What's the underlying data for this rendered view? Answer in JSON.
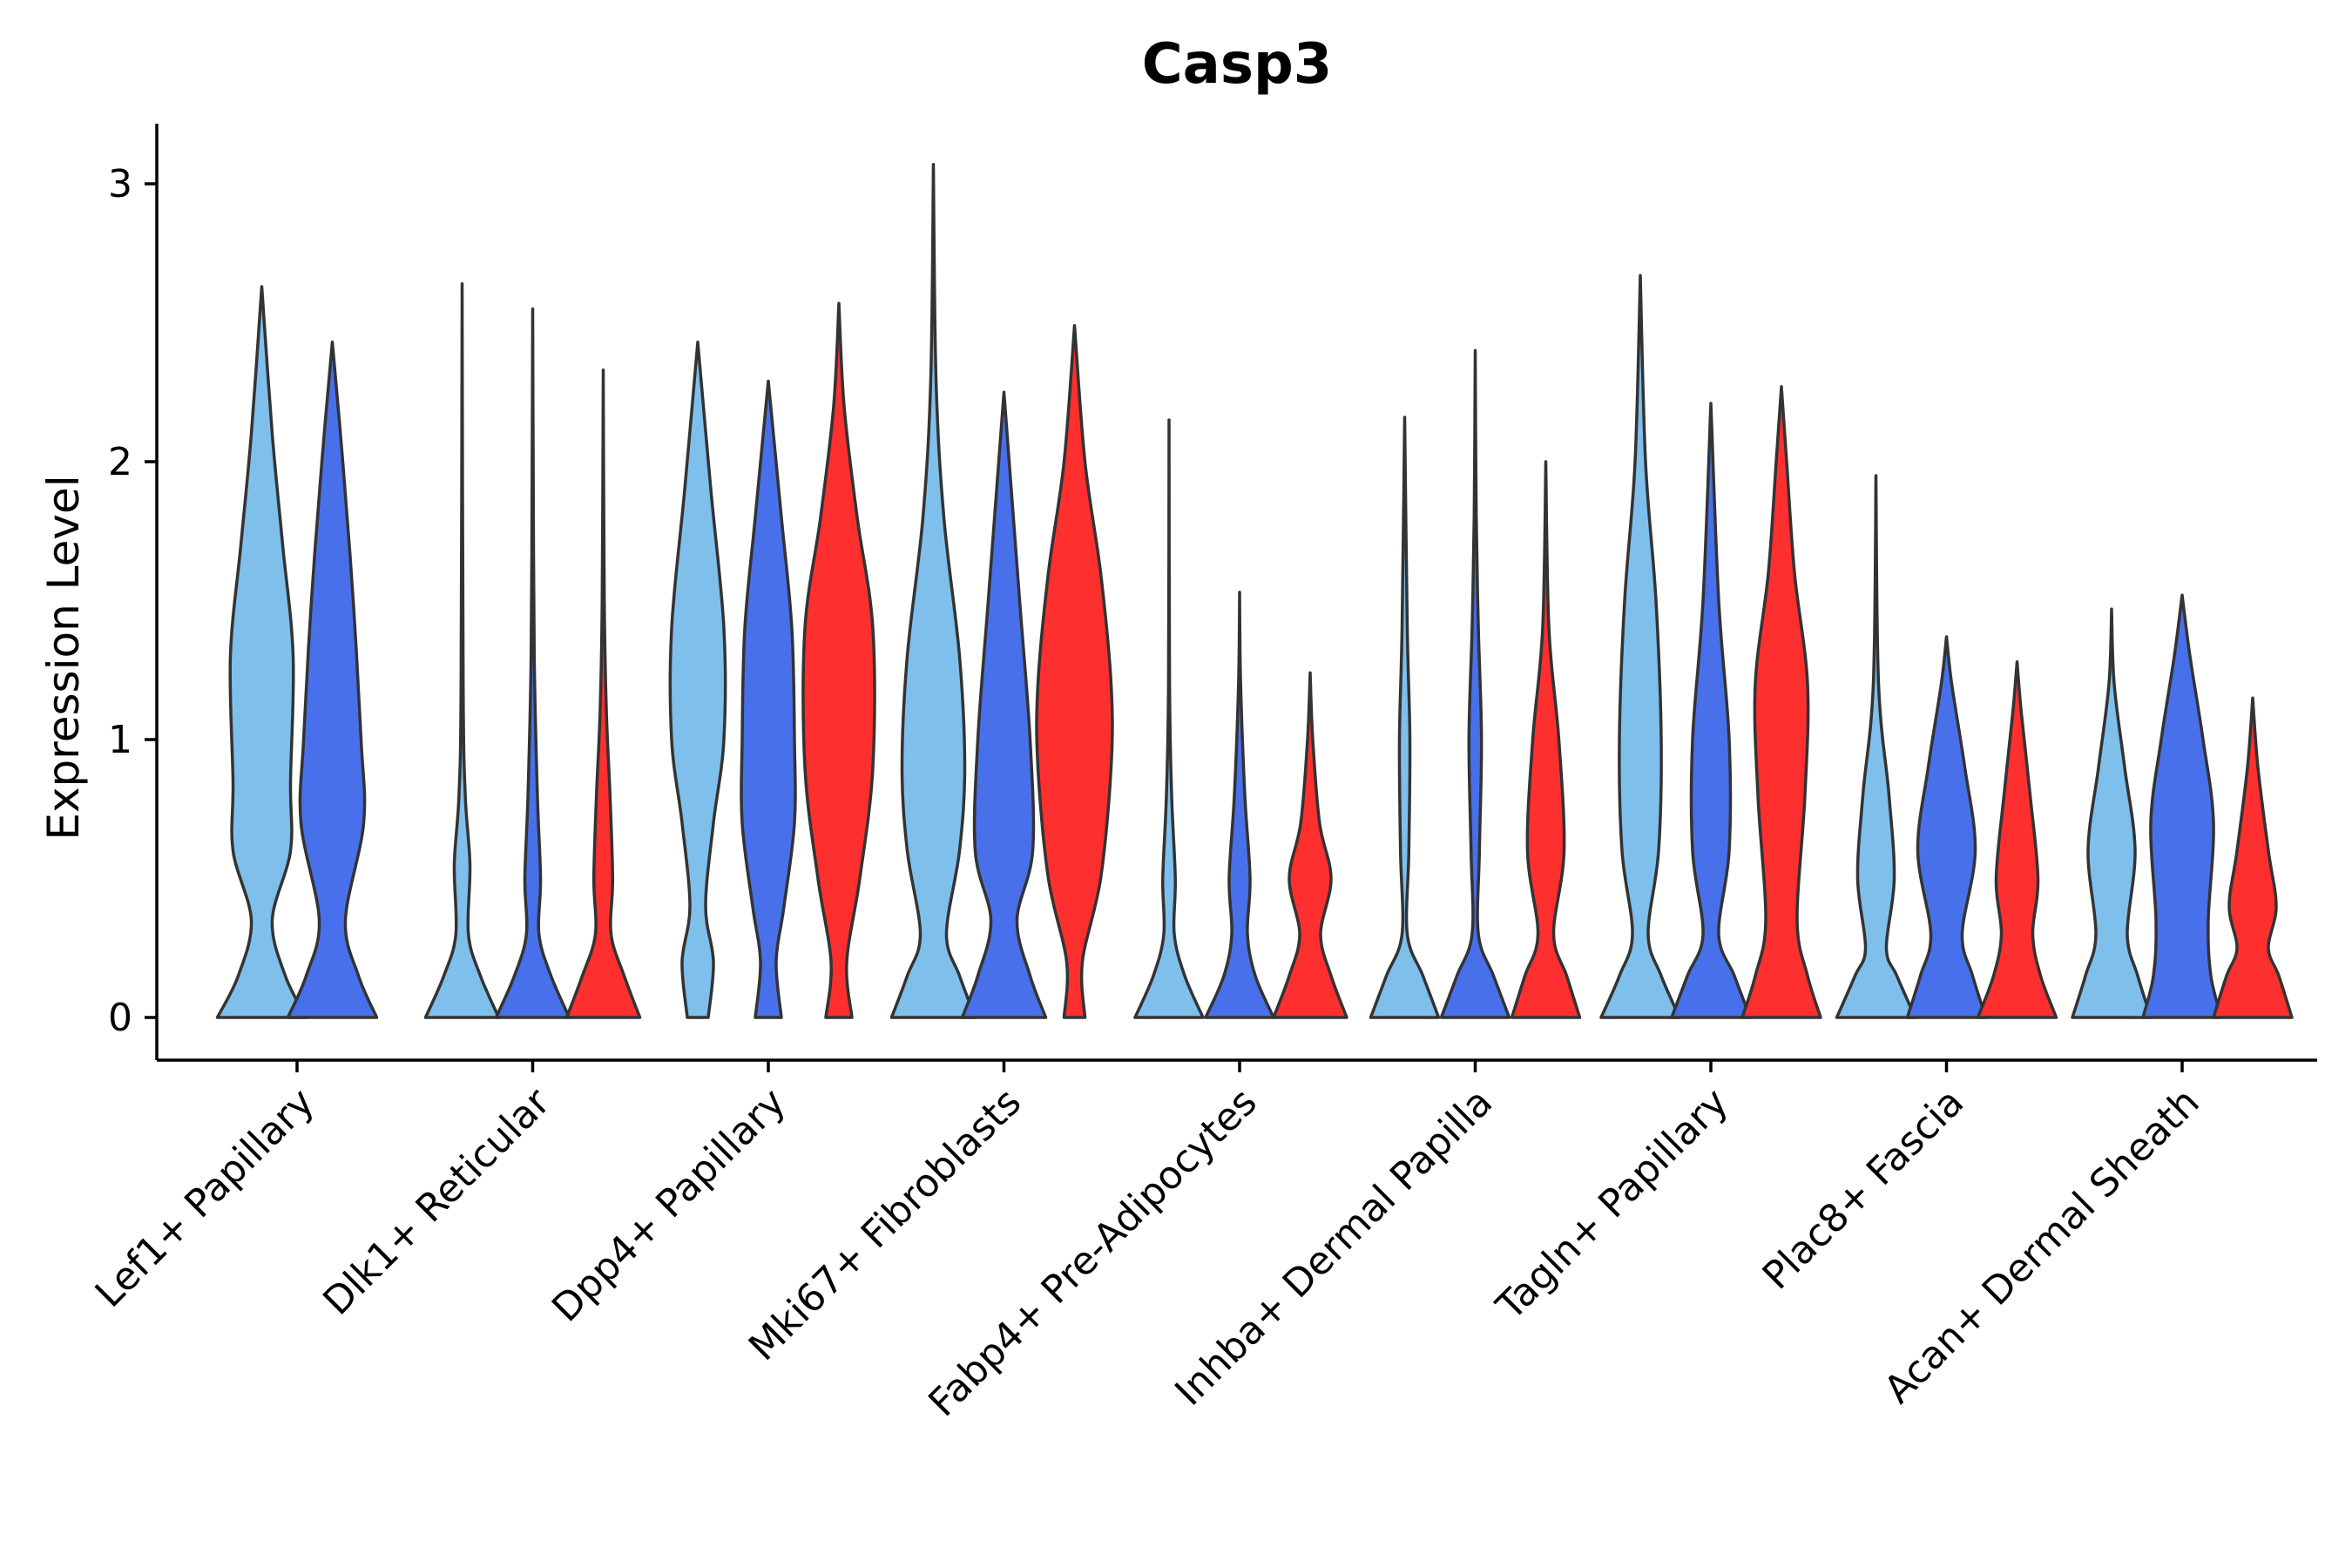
{
  "chart_data": {
    "type": "violin",
    "title": "Casp3",
    "xlabel": "",
    "ylabel": "Expression Level",
    "ylim": [
      -0.15,
      3.22
    ],
    "yticks": [
      0,
      1,
      2,
      3
    ],
    "grid": false,
    "legend": "none",
    "categories": [
      "Lef1+ Papillary",
      "Dlk1+ Reticular",
      "Dpp4+ Papillary",
      "Mki67+ Fibroblasts",
      "Fabp4+ Pre-Adipocytes",
      "Inhba+ Dermal Papilla",
      "Tagln+ Papillary",
      "Plac8+ Fascia",
      "Acan+ Dermal Sheath"
    ],
    "groups": [
      {
        "name": "group-1",
        "color": "#7fbfec"
      },
      {
        "name": "group-2",
        "color": "#4870eb"
      },
      {
        "name": "group-3",
        "color": "#fd2f2f"
      }
    ],
    "violins": [
      {
        "category": 0,
        "group": 0,
        "max": 2.63,
        "profile": [
          [
            0,
            0.85
          ],
          [
            0.15,
            0.45
          ],
          [
            0.35,
            0.2
          ],
          [
            0.6,
            0.55
          ],
          [
            0.85,
            0.55
          ],
          [
            1.3,
            0.6
          ],
          [
            1.7,
            0.4
          ],
          [
            2.1,
            0.2
          ],
          [
            2.63,
            0
          ]
        ]
      },
      {
        "category": 0,
        "group": 1,
        "max": 2.43,
        "profile": [
          [
            0,
            0.85
          ],
          [
            0.15,
            0.5
          ],
          [
            0.35,
            0.25
          ],
          [
            0.7,
            0.6
          ],
          [
            1.0,
            0.55
          ],
          [
            1.5,
            0.4
          ],
          [
            2.0,
            0.2
          ],
          [
            2.43,
            0
          ]
        ]
      },
      {
        "category": 1,
        "group": 0,
        "max": 2.64,
        "profile": [
          [
            0,
            0.7
          ],
          [
            0.15,
            0.35
          ],
          [
            0.3,
            0.12
          ],
          [
            0.55,
            0.15
          ],
          [
            0.8,
            0.06
          ],
          [
            1.2,
            0.02
          ],
          [
            2.64,
            0
          ]
        ]
      },
      {
        "category": 1,
        "group": 1,
        "max": 2.55,
        "profile": [
          [
            0,
            0.7
          ],
          [
            0.15,
            0.35
          ],
          [
            0.3,
            0.12
          ],
          [
            0.5,
            0.15
          ],
          [
            0.8,
            0.09
          ],
          [
            1.3,
            0.03
          ],
          [
            2.0,
            0.01
          ],
          [
            2.55,
            0
          ]
        ]
      },
      {
        "category": 1,
        "group": 2,
        "max": 2.33,
        "profile": [
          [
            0,
            0.7
          ],
          [
            0.15,
            0.4
          ],
          [
            0.3,
            0.15
          ],
          [
            0.5,
            0.18
          ],
          [
            0.8,
            0.13
          ],
          [
            1.1,
            0.06
          ],
          [
            1.5,
            0.02
          ],
          [
            2.33,
            0
          ]
        ]
      },
      {
        "category": 2,
        "group": 0,
        "max": 2.43,
        "profile": [
          [
            0,
            0.2
          ],
          [
            0.2,
            0.3
          ],
          [
            0.4,
            0.15
          ],
          [
            0.7,
            0.3
          ],
          [
            1.0,
            0.5
          ],
          [
            1.4,
            0.5
          ],
          [
            1.9,
            0.25
          ],
          [
            2.43,
            0
          ]
        ]
      },
      {
        "category": 2,
        "group": 1,
        "max": 2.29,
        "profile": [
          [
            0,
            0.25
          ],
          [
            0.2,
            0.15
          ],
          [
            0.4,
            0.3
          ],
          [
            0.7,
            0.5
          ],
          [
            1.0,
            0.5
          ],
          [
            1.4,
            0.45
          ],
          [
            1.8,
            0.25
          ],
          [
            2.29,
            0
          ]
        ]
      },
      {
        "category": 2,
        "group": 2,
        "max": 2.57,
        "profile": [
          [
            0,
            0.25
          ],
          [
            0.2,
            0.15
          ],
          [
            0.5,
            0.4
          ],
          [
            0.9,
            0.65
          ],
          [
            1.4,
            0.65
          ],
          [
            1.8,
            0.35
          ],
          [
            2.2,
            0.1
          ],
          [
            2.57,
            0
          ]
        ]
      },
      {
        "category": 3,
        "group": 0,
        "max": 3.07,
        "profile": [
          [
            0,
            0.8
          ],
          [
            0.15,
            0.5
          ],
          [
            0.3,
            0.25
          ],
          [
            0.6,
            0.5
          ],
          [
            0.9,
            0.6
          ],
          [
            1.3,
            0.5
          ],
          [
            1.8,
            0.2
          ],
          [
            2.3,
            0.05
          ],
          [
            3.07,
            0
          ]
        ]
      },
      {
        "category": 3,
        "group": 1,
        "max": 2.25,
        "profile": [
          [
            0,
            0.8
          ],
          [
            0.15,
            0.5
          ],
          [
            0.35,
            0.25
          ],
          [
            0.6,
            0.55
          ],
          [
            1.0,
            0.5
          ],
          [
            1.5,
            0.3
          ],
          [
            2.0,
            0.1
          ],
          [
            2.25,
            0
          ]
        ]
      },
      {
        "category": 3,
        "group": 2,
        "max": 2.49,
        "profile": [
          [
            0,
            0.2
          ],
          [
            0.2,
            0.15
          ],
          [
            0.5,
            0.5
          ],
          [
            0.9,
            0.7
          ],
          [
            1.2,
            0.7
          ],
          [
            1.6,
            0.5
          ],
          [
            2.0,
            0.2
          ],
          [
            2.49,
            0
          ]
        ]
      },
      {
        "category": 4,
        "group": 0,
        "max": 2.15,
        "profile": [
          [
            0,
            0.65
          ],
          [
            0.15,
            0.3
          ],
          [
            0.3,
            0.1
          ],
          [
            0.5,
            0.12
          ],
          [
            0.8,
            0.05
          ],
          [
            1.2,
            0.01
          ],
          [
            2.15,
            0
          ]
        ]
      },
      {
        "category": 4,
        "group": 1,
        "max": 1.53,
        "profile": [
          [
            0,
            0.65
          ],
          [
            0.15,
            0.3
          ],
          [
            0.3,
            0.15
          ],
          [
            0.5,
            0.2
          ],
          [
            0.8,
            0.1
          ],
          [
            1.2,
            0.02
          ],
          [
            1.53,
            0
          ]
        ]
      },
      {
        "category": 4,
        "group": 2,
        "max": 1.24,
        "profile": [
          [
            0,
            0.7
          ],
          [
            0.15,
            0.4
          ],
          [
            0.3,
            0.2
          ],
          [
            0.5,
            0.4
          ],
          [
            0.7,
            0.18
          ],
          [
            1.0,
            0.05
          ],
          [
            1.24,
            0
          ]
        ]
      },
      {
        "category": 5,
        "group": 0,
        "max": 2.16,
        "profile": [
          [
            0,
            0.65
          ],
          [
            0.15,
            0.35
          ],
          [
            0.3,
            0.05
          ],
          [
            0.6,
            0.08
          ],
          [
            1.0,
            0.1
          ],
          [
            1.4,
            0.05
          ],
          [
            2.16,
            0
          ]
        ]
      },
      {
        "category": 5,
        "group": 1,
        "max": 2.4,
        "profile": [
          [
            0,
            0.65
          ],
          [
            0.15,
            0.35
          ],
          [
            0.3,
            0.06
          ],
          [
            0.6,
            0.08
          ],
          [
            1.0,
            0.12
          ],
          [
            1.4,
            0.06
          ],
          [
            1.8,
            0.02
          ],
          [
            2.4,
            0
          ]
        ]
      },
      {
        "category": 5,
        "group": 2,
        "max": 2.0,
        "profile": [
          [
            0,
            0.65
          ],
          [
            0.15,
            0.4
          ],
          [
            0.3,
            0.15
          ],
          [
            0.6,
            0.35
          ],
          [
            1.0,
            0.25
          ],
          [
            1.4,
            0.06
          ],
          [
            2.0,
            0
          ]
        ]
      },
      {
        "category": 6,
        "group": 0,
        "max": 2.67,
        "profile": [
          [
            0,
            0.75
          ],
          [
            0.15,
            0.4
          ],
          [
            0.3,
            0.15
          ],
          [
            0.6,
            0.35
          ],
          [
            1.0,
            0.4
          ],
          [
            1.5,
            0.3
          ],
          [
            2.0,
            0.1
          ],
          [
            2.67,
            0
          ]
        ]
      },
      {
        "category": 6,
        "group": 1,
        "max": 2.21,
        "profile": [
          [
            0,
            0.75
          ],
          [
            0.15,
            0.45
          ],
          [
            0.3,
            0.15
          ],
          [
            0.6,
            0.35
          ],
          [
            1.0,
            0.35
          ],
          [
            1.5,
            0.15
          ],
          [
            2.21,
            0
          ]
        ]
      },
      {
        "category": 6,
        "group": 2,
        "max": 2.27,
        "profile": [
          [
            0,
            0.75
          ],
          [
            0.15,
            0.5
          ],
          [
            0.35,
            0.3
          ],
          [
            0.8,
            0.45
          ],
          [
            1.2,
            0.5
          ],
          [
            1.6,
            0.25
          ],
          [
            2.0,
            0.1
          ],
          [
            2.27,
            0
          ]
        ]
      },
      {
        "category": 7,
        "group": 0,
        "max": 1.95,
        "profile": [
          [
            0,
            0.75
          ],
          [
            0.15,
            0.4
          ],
          [
            0.25,
            0.2
          ],
          [
            0.5,
            0.35
          ],
          [
            0.8,
            0.25
          ],
          [
            1.2,
            0.05
          ],
          [
            1.95,
            0
          ]
        ]
      },
      {
        "category": 7,
        "group": 1,
        "max": 1.37,
        "profile": [
          [
            0,
            0.75
          ],
          [
            0.15,
            0.5
          ],
          [
            0.3,
            0.3
          ],
          [
            0.6,
            0.55
          ],
          [
            0.9,
            0.35
          ],
          [
            1.2,
            0.1
          ],
          [
            1.37,
            0
          ]
        ]
      },
      {
        "category": 7,
        "group": 2,
        "max": 1.28,
        "profile": [
          [
            0,
            0.75
          ],
          [
            0.15,
            0.45
          ],
          [
            0.3,
            0.3
          ],
          [
            0.5,
            0.4
          ],
          [
            0.8,
            0.25
          ],
          [
            1.1,
            0.08
          ],
          [
            1.28,
            0
          ]
        ]
      },
      {
        "category": 8,
        "group": 0,
        "max": 1.47,
        "profile": [
          [
            0,
            0.75
          ],
          [
            0.15,
            0.5
          ],
          [
            0.3,
            0.3
          ],
          [
            0.6,
            0.45
          ],
          [
            0.9,
            0.25
          ],
          [
            1.2,
            0.05
          ],
          [
            1.47,
            0
          ]
        ]
      },
      {
        "category": 8,
        "group": 1,
        "max": 1.52,
        "profile": [
          [
            0,
            0.75
          ],
          [
            0.15,
            0.55
          ],
          [
            0.35,
            0.5
          ],
          [
            0.7,
            0.6
          ],
          [
            1.0,
            0.4
          ],
          [
            1.3,
            0.15
          ],
          [
            1.52,
            0
          ]
        ]
      },
      {
        "category": 8,
        "group": 2,
        "max": 1.15,
        "profile": [
          [
            0,
            0.75
          ],
          [
            0.15,
            0.5
          ],
          [
            0.25,
            0.3
          ],
          [
            0.4,
            0.45
          ],
          [
            0.6,
            0.3
          ],
          [
            0.9,
            0.1
          ],
          [
            1.15,
            0
          ]
        ]
      }
    ]
  }
}
